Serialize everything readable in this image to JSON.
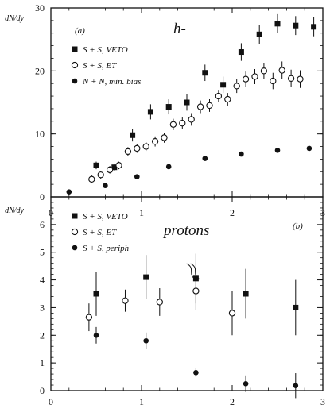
{
  "chart_data": [
    {
      "type": "scatter",
      "panel_label": "(a)",
      "title": "h-",
      "ylabel": "dN/dy",
      "xlabel": "",
      "xlim": [
        0,
        3
      ],
      "ylim": [
        0,
        30
      ],
      "xticks": [
        0,
        1,
        2,
        3
      ],
      "yticks": [
        0,
        10,
        20,
        30
      ],
      "tick_labels_x": [
        "0",
        "1",
        "2",
        "3"
      ],
      "tick_labels_y": [
        "0",
        "10",
        "20",
        "30"
      ],
      "legend_position": "top-left",
      "series": [
        {
          "name": "S + S, VETO",
          "marker": "filled-square",
          "points": [
            {
              "x": 0.5,
              "y": 5.0,
              "err": 0.6
            },
            {
              "x": 0.7,
              "y": 4.7,
              "err": 0.6
            },
            {
              "x": 0.9,
              "y": 9.8,
              "err": 1.0
            },
            {
              "x": 1.1,
              "y": 13.5,
              "err": 1.2
            },
            {
              "x": 1.3,
              "y": 14.3,
              "err": 1.2
            },
            {
              "x": 1.5,
              "y": 15.0,
              "err": 1.3
            },
            {
              "x": 1.7,
              "y": 19.7,
              "err": 1.3
            },
            {
              "x": 1.9,
              "y": 17.8,
              "err": 1.3
            },
            {
              "x": 2.1,
              "y": 23.0,
              "err": 1.4
            },
            {
              "x": 2.3,
              "y": 25.8,
              "err": 1.5
            },
            {
              "x": 2.5,
              "y": 27.5,
              "err": 1.5
            },
            {
              "x": 2.7,
              "y": 27.2,
              "err": 1.5
            },
            {
              "x": 2.9,
              "y": 27.0,
              "err": 1.5
            }
          ]
        },
        {
          "name": "S + S, ET",
          "marker": "open-circle",
          "points": [
            {
              "x": 0.45,
              "y": 2.8,
              "err": 0.6
            },
            {
              "x": 0.55,
              "y": 3.5,
              "err": 0.6
            },
            {
              "x": 0.65,
              "y": 4.3,
              "err": 0.6
            },
            {
              "x": 0.75,
              "y": 5.0,
              "err": 0.6
            },
            {
              "x": 0.85,
              "y": 7.2,
              "err": 0.7
            },
            {
              "x": 0.95,
              "y": 7.7,
              "err": 0.7
            },
            {
              "x": 1.05,
              "y": 8.0,
              "err": 0.7
            },
            {
              "x": 1.15,
              "y": 8.8,
              "err": 0.8
            },
            {
              "x": 1.25,
              "y": 9.4,
              "err": 0.8
            },
            {
              "x": 1.35,
              "y": 11.5,
              "err": 0.9
            },
            {
              "x": 1.45,
              "y": 11.7,
              "err": 0.9
            },
            {
              "x": 1.55,
              "y": 12.3,
              "err": 1.0
            },
            {
              "x": 1.65,
              "y": 14.3,
              "err": 1.0
            },
            {
              "x": 1.75,
              "y": 14.5,
              "err": 1.0
            },
            {
              "x": 1.85,
              "y": 16.0,
              "err": 1.0
            },
            {
              "x": 1.95,
              "y": 15.5,
              "err": 1.0
            },
            {
              "x": 2.05,
              "y": 17.6,
              "err": 1.1
            },
            {
              "x": 2.15,
              "y": 18.7,
              "err": 1.2
            },
            {
              "x": 2.25,
              "y": 19.1,
              "err": 1.2
            },
            {
              "x": 2.35,
              "y": 20.0,
              "err": 1.3
            },
            {
              "x": 2.45,
              "y": 18.4,
              "err": 1.3
            },
            {
              "x": 2.55,
              "y": 20.1,
              "err": 1.4
            },
            {
              "x": 2.65,
              "y": 18.8,
              "err": 1.4
            },
            {
              "x": 2.75,
              "y": 18.7,
              "err": 1.4
            }
          ]
        },
        {
          "name": "N + N, min. bias",
          "marker": "filled-circle",
          "points": [
            {
              "x": 0.2,
              "y": 0.8
            },
            {
              "x": 0.6,
              "y": 1.8
            },
            {
              "x": 0.95,
              "y": 3.2
            },
            {
              "x": 1.3,
              "y": 4.8
            },
            {
              "x": 1.7,
              "y": 6.1
            },
            {
              "x": 2.1,
              "y": 6.8
            },
            {
              "x": 2.5,
              "y": 7.4
            },
            {
              "x": 2.85,
              "y": 7.7
            }
          ]
        }
      ]
    },
    {
      "type": "scatter",
      "panel_label": "(b)",
      "title": "protons",
      "ylabel": "dN/dy",
      "xlabel": "",
      "xlim": [
        0,
        3
      ],
      "ylim": [
        0,
        7
      ],
      "xticks": [
        0,
        1,
        2,
        3
      ],
      "yticks": [
        0,
        1,
        2,
        3,
        4,
        5,
        6
      ],
      "tick_labels_x": [
        "0",
        "1",
        "2",
        "3"
      ],
      "tick_labels_y": [
        "0",
        "1",
        "2",
        "3",
        "4",
        "5",
        "6"
      ],
      "legend_position": "top-left",
      "series": [
        {
          "name": "S + S, VETO",
          "marker": "filled-square",
          "points": [
            {
              "x": 0.5,
              "y": 3.5,
              "err": 0.8
            },
            {
              "x": 1.05,
              "y": 4.1,
              "err": 0.8
            },
            {
              "x": 1.6,
              "y": 4.05,
              "err": 0.9
            },
            {
              "x": 2.15,
              "y": 3.5,
              "err": 0.9
            },
            {
              "x": 2.7,
              "y": 3.0,
              "err": 1.0
            }
          ]
        },
        {
          "name": "S + S, ET",
          "marker": "open-circle",
          "points": [
            {
              "x": 0.42,
              "y": 2.65,
              "err": 0.5
            },
            {
              "x": 0.82,
              "y": 3.25,
              "err": 0.4
            },
            {
              "x": 1.2,
              "y": 3.2,
              "err": 0.5
            },
            {
              "x": 1.6,
              "y": 3.6,
              "err": 0.7
            },
            {
              "x": 2.0,
              "y": 2.8,
              "err": 0.8
            }
          ]
        },
        {
          "name": "S + S, periph",
          "marker": "filled-circle",
          "points": [
            {
              "x": 0.5,
              "y": 2.0,
              "err": 0.3
            },
            {
              "x": 1.05,
              "y": 1.8,
              "err": 0.3
            },
            {
              "x": 1.6,
              "y": 0.65,
              "err": 0.15
            },
            {
              "x": 2.15,
              "y": 0.25,
              "err": 0.3
            },
            {
              "x": 2.7,
              "y": 0.18,
              "err": 0.45
            }
          ]
        }
      ]
    }
  ]
}
